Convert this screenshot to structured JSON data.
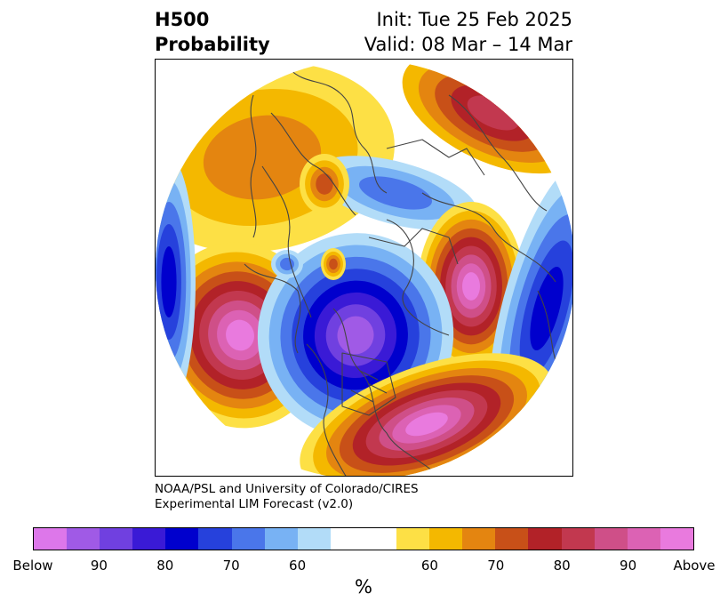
{
  "header": {
    "left_line1": "H500",
    "left_line2": "Probability",
    "right_line1": "Init: Tue 25 Feb 2025",
    "right_line2": "Valid: 08 Mar – 14 Mar"
  },
  "credit": {
    "line1": "NOAA/PSL and University of Colorado/CIRES",
    "line2": "Experimental LIM Forecast (v2.0)"
  },
  "colorbar": {
    "unit": "%",
    "colors": [
      "#dd77ea",
      "#a05ae6",
      "#7040e0",
      "#3a1ad6",
      "#0000cd",
      "#2641dc",
      "#4a76ea",
      "#78b2f4",
      "#b2dcf8",
      "#ffffff",
      "#ffffff",
      "#fde045",
      "#f4b800",
      "#e48510",
      "#c85018",
      "#b22228",
      "#c2384f",
      "#cf4f88",
      "#dc62b4",
      "#e97ade"
    ],
    "ticks": [
      {
        "label": "Below",
        "index": 0
      },
      {
        "label": "90",
        "index": 2
      },
      {
        "label": "80",
        "index": 4
      },
      {
        "label": "70",
        "index": 6
      },
      {
        "label": "60",
        "index": 8
      },
      {
        "label": "60",
        "index": 12
      },
      {
        "label": "70",
        "index": 14
      },
      {
        "label": "80",
        "index": 16
      },
      {
        "label": "90",
        "index": 18
      },
      {
        "label": "Above",
        "index": 20
      }
    ]
  },
  "map": {
    "below_colors": [
      "#b2dcf8",
      "#78b2f4",
      "#4a76ea",
      "#2641dc",
      "#0000cd",
      "#3a1ad6",
      "#7040e0",
      "#a05ae6"
    ],
    "above_colors": [
      "#fde045",
      "#f4b800",
      "#e48510",
      "#c85018",
      "#b22228",
      "#c2384f",
      "#cf4f88",
      "#dc62b4",
      "#e97ade"
    ],
    "line_color": "#444444"
  }
}
